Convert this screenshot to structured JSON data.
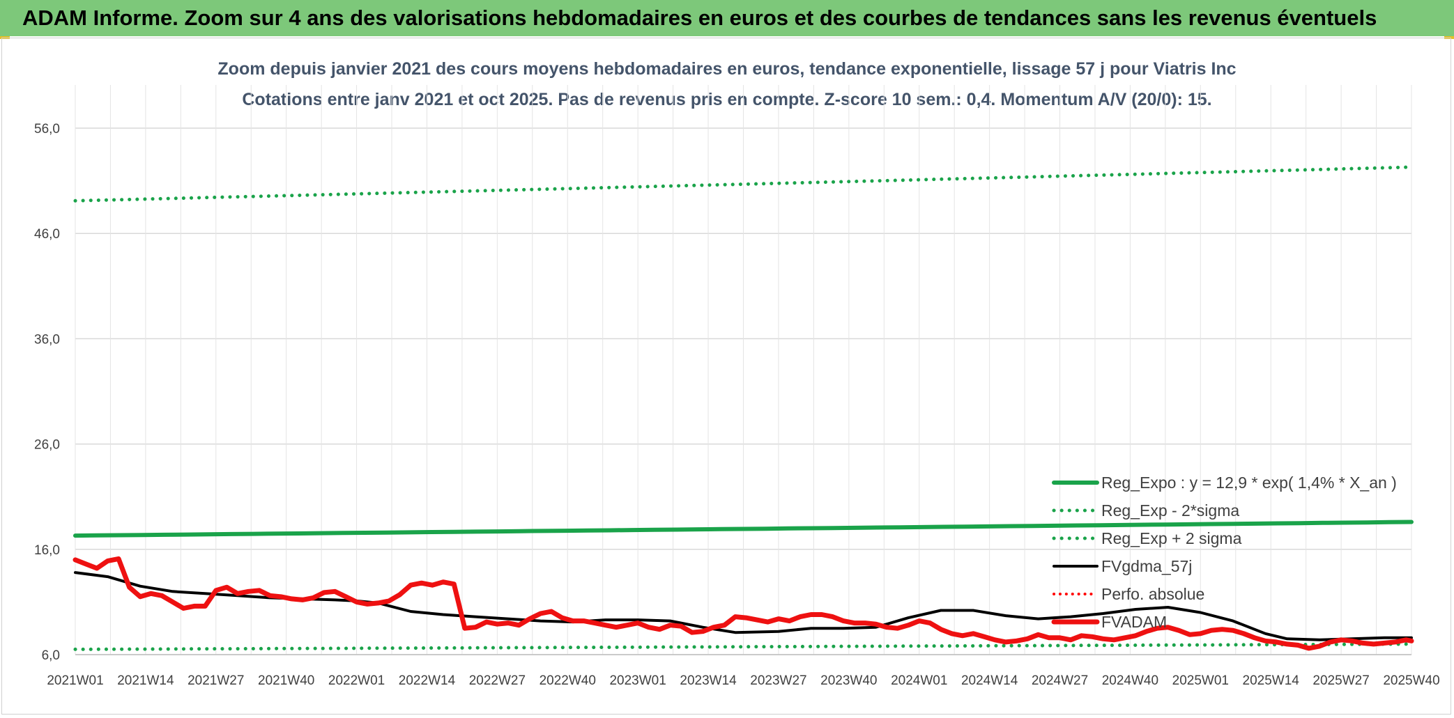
{
  "banner_title": "ADAM Informe. Zoom sur 4 ans des valorisations hebdomadaires en euros et des courbes de tendances sans les revenus éventuels",
  "chart_data": {
    "type": "line",
    "title": "Zoom depuis janvier 2021 des cours moyens hebdomadaires en euros, tendance exponentielle, lissage 57 j pour Viatris Inc",
    "subtitle": "Cotations entre janv 2021 et oct 2025. Pas de revenus pris en compte. Z-score 10 sem.: 0,4. Momentum A/V (20/0): 15.",
    "xlabel": "",
    "ylabel": "",
    "ylim": [
      6,
      56
    ],
    "yticks": [
      6,
      16,
      26,
      36,
      46,
      56
    ],
    "ytick_labels": [
      "6,0",
      "16,0",
      "26,0",
      "36,0",
      "46,0",
      "56,0"
    ],
    "xlim": [
      0,
      247
    ],
    "xtick_labels": [
      "2021W01",
      "2021W14",
      "2021W27",
      "2021W40",
      "2022W01",
      "2022W14",
      "2022W27",
      "2022W40",
      "2023W01",
      "2023W14",
      "2023W27",
      "2023W40",
      "2024W01",
      "2024W14",
      "2024W27",
      "2024W40",
      "2025W01",
      "2025W14",
      "2025W27",
      "2025W40"
    ],
    "xtick_positions": [
      0,
      13,
      26,
      39,
      52,
      65,
      78,
      91,
      104,
      117,
      130,
      143,
      156,
      169,
      182,
      195,
      208,
      221,
      234,
      247
    ],
    "grid": true,
    "legend_position": "bottom-right",
    "series": [
      {
        "name": "Reg_Expo : y = 12,9 * exp( 1,4% *  X_an )",
        "style": "solid",
        "color": "#1aa34a",
        "width": 6,
        "x": [
          0,
          247
        ],
        "y": [
          17.3,
          18.6
        ],
        "curve": "exp"
      },
      {
        "name": "Reg_Exp - 2*sigma",
        "style": "dotted",
        "color": "#1aa34a",
        "width": 5,
        "x": [
          0,
          247
        ],
        "y": [
          6.5,
          7.0
        ],
        "curve": "exp"
      },
      {
        "name": "Reg_Exp + 2 sigma",
        "style": "dotted",
        "color": "#1aa34a",
        "width": 5,
        "x": [
          0,
          247
        ],
        "y": [
          49.1,
          52.3
        ],
        "curve": "exp"
      },
      {
        "name": "FVgdma_57j",
        "style": "solid",
        "color": "#000000",
        "width": 4,
        "x": [
          0,
          6,
          12,
          18,
          24,
          30,
          36,
          42,
          48,
          52,
          56,
          62,
          68,
          74,
          80,
          86,
          92,
          98,
          104,
          110,
          116,
          122,
          130,
          136,
          142,
          148,
          154,
          160,
          166,
          172,
          178,
          184,
          190,
          196,
          202,
          208,
          214,
          220,
          224,
          230,
          236,
          242,
          247
        ],
        "y": [
          13.8,
          13.4,
          12.5,
          12.0,
          11.8,
          11.6,
          11.4,
          11.3,
          11.2,
          11.1,
          10.9,
          10.1,
          9.8,
          9.6,
          9.4,
          9.2,
          9.1,
          9.3,
          9.3,
          9.2,
          8.6,
          8.1,
          8.2,
          8.5,
          8.5,
          8.6,
          9.5,
          10.2,
          10.2,
          9.7,
          9.4,
          9.6,
          9.9,
          10.3,
          10.5,
          10.0,
          9.2,
          8.0,
          7.5,
          7.4,
          7.5,
          7.6,
          7.6
        ]
      },
      {
        "name": "Perfo. absolue",
        "style": "dotted",
        "color": "#ff0000",
        "width": 4,
        "x": [],
        "y": []
      },
      {
        "name": "FVADAM",
        "style": "solid",
        "color": "#ee1111",
        "width": 7,
        "x": [
          0,
          2,
          4,
          6,
          8,
          10,
          12,
          14,
          16,
          18,
          20,
          22,
          24,
          26,
          28,
          30,
          32,
          34,
          36,
          38,
          40,
          42,
          44,
          46,
          48,
          50,
          52,
          54,
          56,
          58,
          60,
          62,
          64,
          66,
          68,
          70,
          72,
          74,
          76,
          78,
          80,
          82,
          84,
          86,
          88,
          90,
          92,
          94,
          96,
          98,
          100,
          102,
          104,
          106,
          108,
          110,
          112,
          114,
          116,
          118,
          120,
          122,
          124,
          126,
          128,
          130,
          132,
          134,
          136,
          138,
          140,
          142,
          144,
          146,
          148,
          150,
          152,
          154,
          156,
          158,
          160,
          162,
          164,
          166,
          168,
          170,
          172,
          174,
          176,
          178,
          180,
          182,
          184,
          186,
          188,
          190,
          192,
          194,
          196,
          198,
          200,
          202,
          204,
          206,
          208,
          210,
          212,
          214,
          216,
          218,
          220,
          222,
          224,
          226,
          228,
          230,
          232,
          234,
          236,
          238,
          240,
          242,
          244,
          246,
          247
        ],
        "y": [
          15.0,
          14.6,
          14.2,
          14.9,
          15.1,
          12.4,
          11.5,
          11.8,
          11.6,
          11.0,
          10.4,
          10.6,
          10.6,
          12.1,
          12.4,
          11.8,
          12.0,
          12.1,
          11.6,
          11.5,
          11.3,
          11.2,
          11.4,
          11.9,
          12.0,
          11.5,
          11.0,
          10.8,
          10.9,
          11.1,
          11.7,
          12.6,
          12.8,
          12.6,
          12.9,
          12.7,
          8.5,
          8.6,
          9.1,
          8.9,
          9.0,
          8.8,
          9.4,
          9.9,
          10.1,
          9.5,
          9.2,
          9.2,
          9.0,
          8.8,
          8.6,
          8.8,
          9.0,
          8.6,
          8.4,
          8.8,
          8.7,
          8.1,
          8.2,
          8.6,
          8.8,
          9.6,
          9.5,
          9.3,
          9.1,
          9.4,
          9.2,
          9.6,
          9.8,
          9.8,
          9.6,
          9.2,
          9.0,
          9.0,
          8.9,
          8.6,
          8.5,
          8.8,
          9.2,
          9.0,
          8.4,
          8.0,
          7.8,
          8.0,
          7.7,
          7.4,
          7.2,
          7.3,
          7.5,
          7.9,
          7.6,
          7.6,
          7.4,
          7.8,
          7.7,
          7.5,
          7.4,
          7.6,
          7.8,
          8.2,
          8.5,
          8.6,
          8.3,
          7.9,
          8.0,
          8.3,
          8.4,
          8.3,
          8.0,
          7.6,
          7.3,
          7.2,
          7.0,
          6.9,
          6.6,
          6.8,
          7.2,
          7.4,
          7.3,
          7.1,
          7.0,
          7.1,
          7.2,
          7.4,
          7.3
        ]
      }
    ]
  }
}
